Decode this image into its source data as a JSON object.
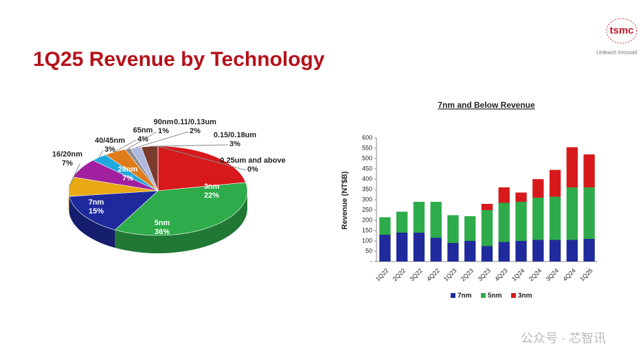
{
  "title": "1Q25 Revenue by Technology",
  "logo": {
    "name": "tsmc",
    "tagline": "Unleash Innovati"
  },
  "watermark": "公众号 · 芯智讯",
  "chart_data": [
    {
      "type": "pie",
      "categories": [
        "3nm",
        "5nm",
        "7nm",
        "16/20nm",
        "28nm",
        "40/45nm",
        "65nm",
        "90nm",
        "0.11/0.13um",
        "0.15/0.18um",
        "0.25um and above"
      ],
      "values": [
        22,
        36,
        15,
        7,
        7,
        3,
        4,
        1,
        2,
        3,
        0
      ],
      "value_labels": [
        "22%",
        "36%",
        "15%",
        "7%",
        "7%",
        "3%",
        "4%",
        "1%",
        "2%",
        "3%",
        "0%"
      ],
      "colors": [
        "#d7191c",
        "#2eab4a",
        "#1e2a9c",
        "#e8a915",
        "#a020a0",
        "#1fa8e0",
        "#e07b1a",
        "#8d8d8d",
        "#b0b8e0",
        "#7a3b2e",
        "#333333"
      ]
    },
    {
      "type": "bar",
      "title": "7nm and Below Revenue",
      "y_label": "Revenue (NT$B)",
      "categories": [
        "1Q22",
        "2Q22",
        "3Q22",
        "4Q22",
        "1Q23",
        "2Q23",
        "3Q23",
        "4Q23",
        "1Q24",
        "2Q24",
        "3Q24",
        "4Q24",
        "1Q25"
      ],
      "series": [
        {
          "name": "7nm",
          "color": "#1f2a9c",
          "values": [
            130,
            140,
            140,
            115,
            90,
            100,
            75,
            95,
            100,
            105,
            105,
            105,
            110
          ]
        },
        {
          "name": "5nm",
          "color": "#2eab4a",
          "values": [
            85,
            102,
            150,
            175,
            135,
            120,
            175,
            190,
            190,
            205,
            210,
            255,
            250
          ]
        },
        {
          "name": "3nm",
          "color": "#d7191c",
          "values": [
            0,
            0,
            0,
            0,
            0,
            0,
            30,
            75,
            45,
            90,
            130,
            195,
            160
          ]
        }
      ],
      "ylim": [
        0,
        600
      ],
      "yticks": [
        {
          "value": 0,
          "label": "-"
        },
        50,
        100,
        150,
        200,
        250,
        300,
        350,
        400,
        450,
        500,
        550,
        600
      ]
    }
  ]
}
